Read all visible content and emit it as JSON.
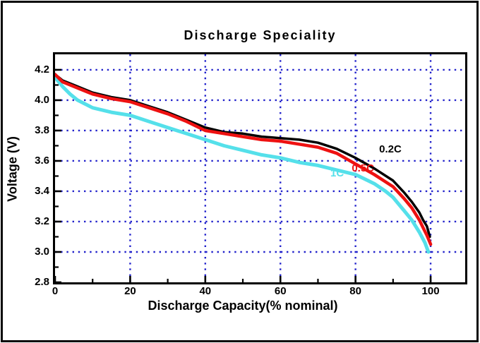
{
  "window": {
    "background": "#ffffff",
    "frame_color": "#0a0a0a"
  },
  "chart_data": {
    "type": "line",
    "title": "Discharge Speciality",
    "xlabel": "Discharge Capacity(% nominal)",
    "ylabel": "Voltage (V)",
    "xlim": [
      0,
      109.2
    ],
    "ylim": [
      2.8,
      4.302
    ],
    "x_major_ticks": [
      0,
      20,
      40,
      60,
      80,
      100
    ],
    "x_major_tick_labels": [
      "0",
      "20",
      "40",
      "60",
      "80",
      "100"
    ],
    "x_minor_ticks": [
      10,
      30,
      50,
      70,
      90
    ],
    "y_major_ticks": [
      2.8,
      3.0,
      3.2,
      3.4,
      3.6,
      3.8,
      4.0,
      4.2
    ],
    "y_major_tick_labels": [
      "2.8",
      "3.0",
      "3.2",
      "3.4",
      "3.6",
      "3.8",
      "4.0",
      "4.2"
    ],
    "y_minor_ticks": [
      2.9,
      3.1,
      3.3,
      3.5,
      3.7,
      3.9,
      4.1
    ],
    "grid": {
      "style": "dotted",
      "color": "#2222cc",
      "x_lines": [
        20,
        40,
        60,
        80,
        100
      ],
      "y_lines": [
        3.0,
        3.2,
        3.4,
        3.6,
        3.8,
        4.0,
        4.2
      ]
    },
    "legend_position": "inline-curve-labels",
    "series": [
      {
        "name": "0.2C",
        "color": "#000000",
        "line_width": 3.5,
        "points": [
          [
            0,
            4.17
          ],
          [
            2,
            4.13
          ],
          [
            5,
            4.1
          ],
          [
            10,
            4.05
          ],
          [
            15,
            4.02
          ],
          [
            20,
            4.0
          ],
          [
            25,
            3.96
          ],
          [
            30,
            3.92
          ],
          [
            35,
            3.87
          ],
          [
            40,
            3.82
          ],
          [
            45,
            3.79
          ],
          [
            50,
            3.78
          ],
          [
            55,
            3.76
          ],
          [
            60,
            3.75
          ],
          [
            65,
            3.74
          ],
          [
            70,
            3.72
          ],
          [
            75,
            3.68
          ],
          [
            80,
            3.62
          ],
          [
            85,
            3.55
          ],
          [
            90,
            3.47
          ],
          [
            93,
            3.39
          ],
          [
            95,
            3.33
          ],
          [
            97,
            3.26
          ],
          [
            98,
            3.21
          ],
          [
            99,
            3.17
          ],
          [
            99.8,
            3.1
          ]
        ]
      },
      {
        "name": "1C",
        "color": "#55e0ea",
        "line_width": 5,
        "points": [
          [
            0,
            4.15
          ],
          [
            2,
            4.09
          ],
          [
            4,
            4.04
          ],
          [
            6,
            4.0
          ],
          [
            10,
            3.95
          ],
          [
            15,
            3.92
          ],
          [
            20,
            3.9
          ],
          [
            25,
            3.86
          ],
          [
            30,
            3.82
          ],
          [
            35,
            3.78
          ],
          [
            40,
            3.74
          ],
          [
            45,
            3.7
          ],
          [
            50,
            3.67
          ],
          [
            55,
            3.64
          ],
          [
            60,
            3.62
          ],
          [
            65,
            3.59
          ],
          [
            70,
            3.57
          ],
          [
            75,
            3.54
          ],
          [
            80,
            3.51
          ],
          [
            85,
            3.45
          ],
          [
            88,
            3.4
          ],
          [
            90,
            3.36
          ],
          [
            93,
            3.27
          ],
          [
            95,
            3.21
          ],
          [
            97,
            3.13
          ],
          [
            98.5,
            3.06
          ],
          [
            99.4,
            3.0
          ]
        ]
      },
      {
        "name": "0.5C",
        "color": "#ee1111",
        "line_width": 4.5,
        "points": [
          [
            0,
            4.17
          ],
          [
            2,
            4.12
          ],
          [
            5,
            4.09
          ],
          [
            10,
            4.04
          ],
          [
            15,
            4.01
          ],
          [
            20,
            3.99
          ],
          [
            25,
            3.95
          ],
          [
            30,
            3.91
          ],
          [
            35,
            3.86
          ],
          [
            40,
            3.8
          ],
          [
            45,
            3.78
          ],
          [
            50,
            3.76
          ],
          [
            55,
            3.74
          ],
          [
            60,
            3.73
          ],
          [
            65,
            3.71
          ],
          [
            70,
            3.69
          ],
          [
            75,
            3.65
          ],
          [
            80,
            3.58
          ],
          [
            85,
            3.51
          ],
          [
            90,
            3.43
          ],
          [
            93,
            3.35
          ],
          [
            95,
            3.29
          ],
          [
            97,
            3.21
          ],
          [
            98,
            3.16
          ],
          [
            99,
            3.11
          ],
          [
            100,
            3.05
          ]
        ]
      }
    ],
    "annotations": [
      {
        "text": "0.2C",
        "color": "#000000",
        "x": 86.3,
        "y": 3.675
      },
      {
        "text": "0.5C",
        "color": "#ee1111",
        "x": 79.0,
        "y": 3.55
      },
      {
        "text": "1C",
        "color": "#55e0ea",
        "x": 73.3,
        "y": 3.515
      }
    ]
  }
}
